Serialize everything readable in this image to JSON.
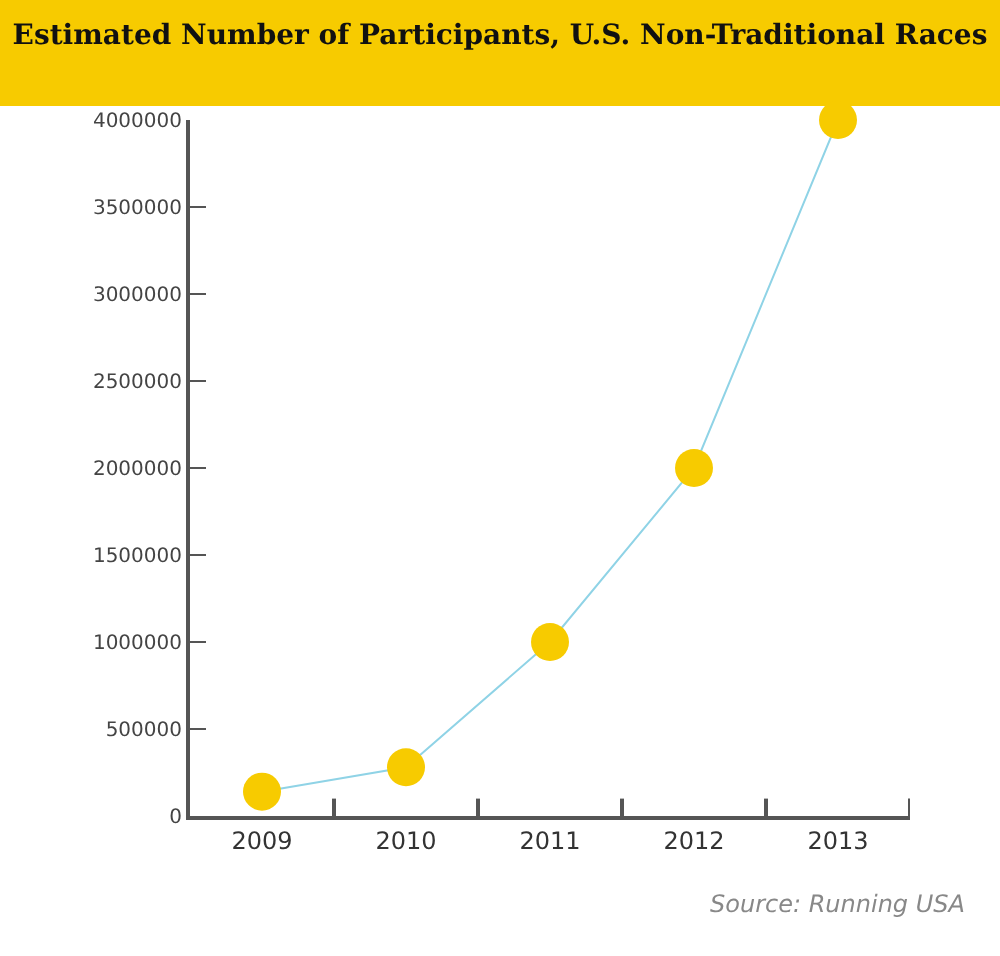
{
  "chart_data": {
    "type": "line",
    "title": "Estimated Number of Participants, U.S. Non-Traditional Races",
    "categories": [
      "2009",
      "2010",
      "2011",
      "2012",
      "2013"
    ],
    "series": [
      {
        "color": "#8fd3e6",
        "colors": [
          "#f7cb00",
          "#f7cb00",
          "#f7cb00",
          "#f7cb00",
          "#f7cb00"
        ],
        "values": [
          140000,
          280000,
          1000000,
          2000000,
          4000000
        ]
      }
    ],
    "marker": "circle",
    "line_style": "solid",
    "ylim": [
      0,
      4000000
    ],
    "yticks": [
      0,
      500000,
      1000000,
      1500000,
      2000000,
      2500000,
      3000000,
      3500000,
      4000000
    ],
    "annotations": [
      "Source: Running USA"
    ]
  }
}
